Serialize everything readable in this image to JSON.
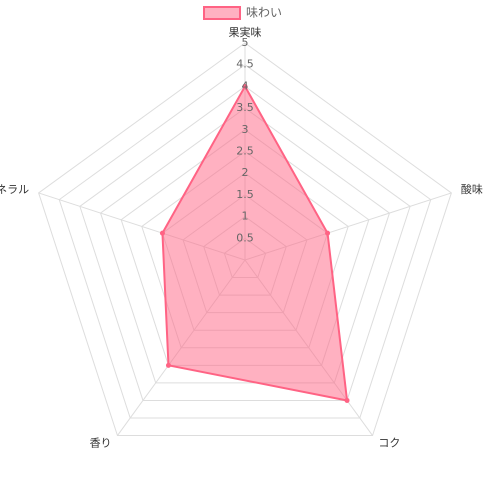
{
  "chart_data": {
    "type": "radar",
    "categories": [
      "果実味",
      "酸味",
      "コク",
      "香り",
      "ミネラル"
    ],
    "series": [
      {
        "name": "味わい",
        "color": "#ff6384",
        "values": [
          4,
          2,
          4,
          3,
          2
        ]
      }
    ],
    "rlim": [
      0,
      5
    ],
    "rticks": [
      0.5,
      1,
      1.5,
      2,
      2.5,
      3,
      3.5,
      4,
      4.5,
      5
    ],
    "grid": true,
    "legend": "top"
  }
}
